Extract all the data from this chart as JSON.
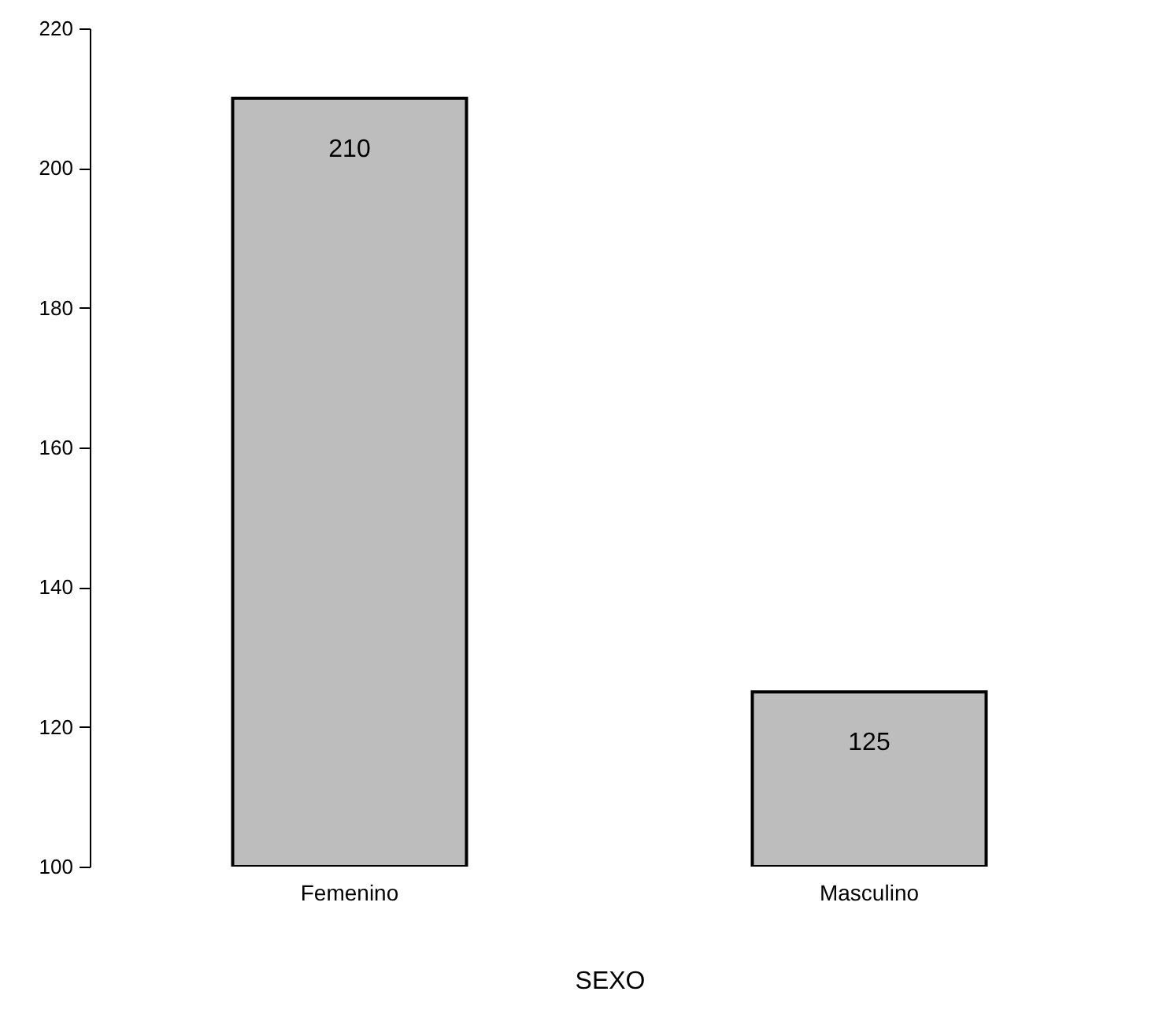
{
  "chart_data": {
    "type": "bar",
    "xlabel": "SEXO",
    "categories": [
      "Femenino",
      "Masculino"
    ],
    "values": [
      210,
      125
    ],
    "color": "#bdbdbd",
    "ylim": [
      100,
      220
    ],
    "yticks": [
      100,
      120,
      140,
      160,
      180,
      200,
      220
    ],
    "grid": false,
    "data_labels": true
  }
}
